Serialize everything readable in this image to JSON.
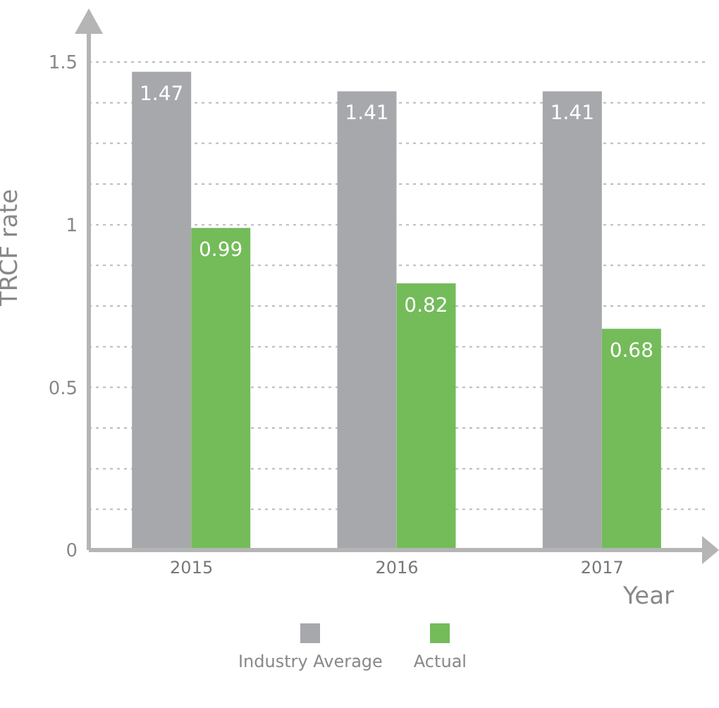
{
  "chart_data": {
    "type": "bar",
    "xlabel": "Year",
    "ylabel": "TRCF rate",
    "categories": [
      "2015",
      "2016",
      "2017"
    ],
    "series": [
      {
        "name": "Industry Average",
        "color": "#a7a8ac",
        "values": [
          1.47,
          1.41,
          1.41
        ]
      },
      {
        "name": "Actual",
        "color": "#74bb5a",
        "values": [
          0.99,
          0.82,
          0.68
        ]
      }
    ],
    "ylim": [
      0,
      1.5
    ],
    "yticks": [
      0,
      {
        "value": 0.125,
        "label": null
      },
      {
        "value": 0.25,
        "label": null
      },
      {
        "value": 0.375,
        "label": null
      },
      0.5,
      {
        "value": 0.625,
        "label": null
      },
      {
        "value": 0.75,
        "label": null
      },
      {
        "value": 0.875,
        "label": null
      },
      1,
      {
        "value": 1.125,
        "label": null
      },
      {
        "value": 1.25,
        "label": null
      },
      {
        "value": 1.375,
        "label": null
      },
      1.5
    ],
    "grid": "y",
    "legend": "bottom",
    "data_labels": true
  }
}
